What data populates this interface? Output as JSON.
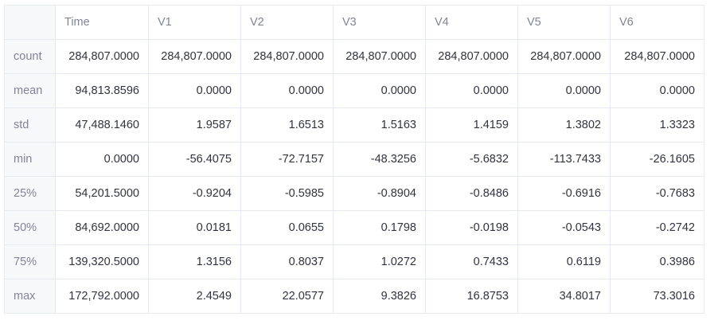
{
  "table": {
    "columns": [
      "Time",
      "V1",
      "V2",
      "V3",
      "V4",
      "V5",
      "V6"
    ],
    "rows": [
      {
        "label": "count",
        "values": [
          "284,807.0000",
          "284,807.0000",
          "284,807.0000",
          "284,807.0000",
          "284,807.0000",
          "284,807.0000",
          "284,807.0000"
        ]
      },
      {
        "label": "mean",
        "values": [
          "94,813.8596",
          "0.0000",
          "0.0000",
          "0.0000",
          "0.0000",
          "0.0000",
          "0.0000"
        ]
      },
      {
        "label": "std",
        "values": [
          "47,488.1460",
          "1.9587",
          "1.6513",
          "1.5163",
          "1.4159",
          "1.3802",
          "1.3323"
        ]
      },
      {
        "label": "min",
        "values": [
          "0.0000",
          "-56.4075",
          "-72.7157",
          "-48.3256",
          "-5.6832",
          "-113.7433",
          "-26.1605"
        ]
      },
      {
        "label": "25%",
        "values": [
          "54,201.5000",
          "-0.9204",
          "-0.5985",
          "-0.8904",
          "-0.8486",
          "-0.6916",
          "-0.7683"
        ]
      },
      {
        "label": "50%",
        "values": [
          "84,692.0000",
          "0.0181",
          "0.0655",
          "0.1798",
          "-0.0198",
          "-0.0543",
          "-0.2742"
        ]
      },
      {
        "label": "75%",
        "values": [
          "139,320.5000",
          "1.3156",
          "0.8037",
          "1.0272",
          "0.7433",
          "0.6119",
          "0.3986"
        ]
      },
      {
        "label": "max",
        "values": [
          "172,792.0000",
          "2.4549",
          "22.0577",
          "9.3826",
          "16.8753",
          "34.8017",
          "73.3016"
        ]
      }
    ]
  }
}
